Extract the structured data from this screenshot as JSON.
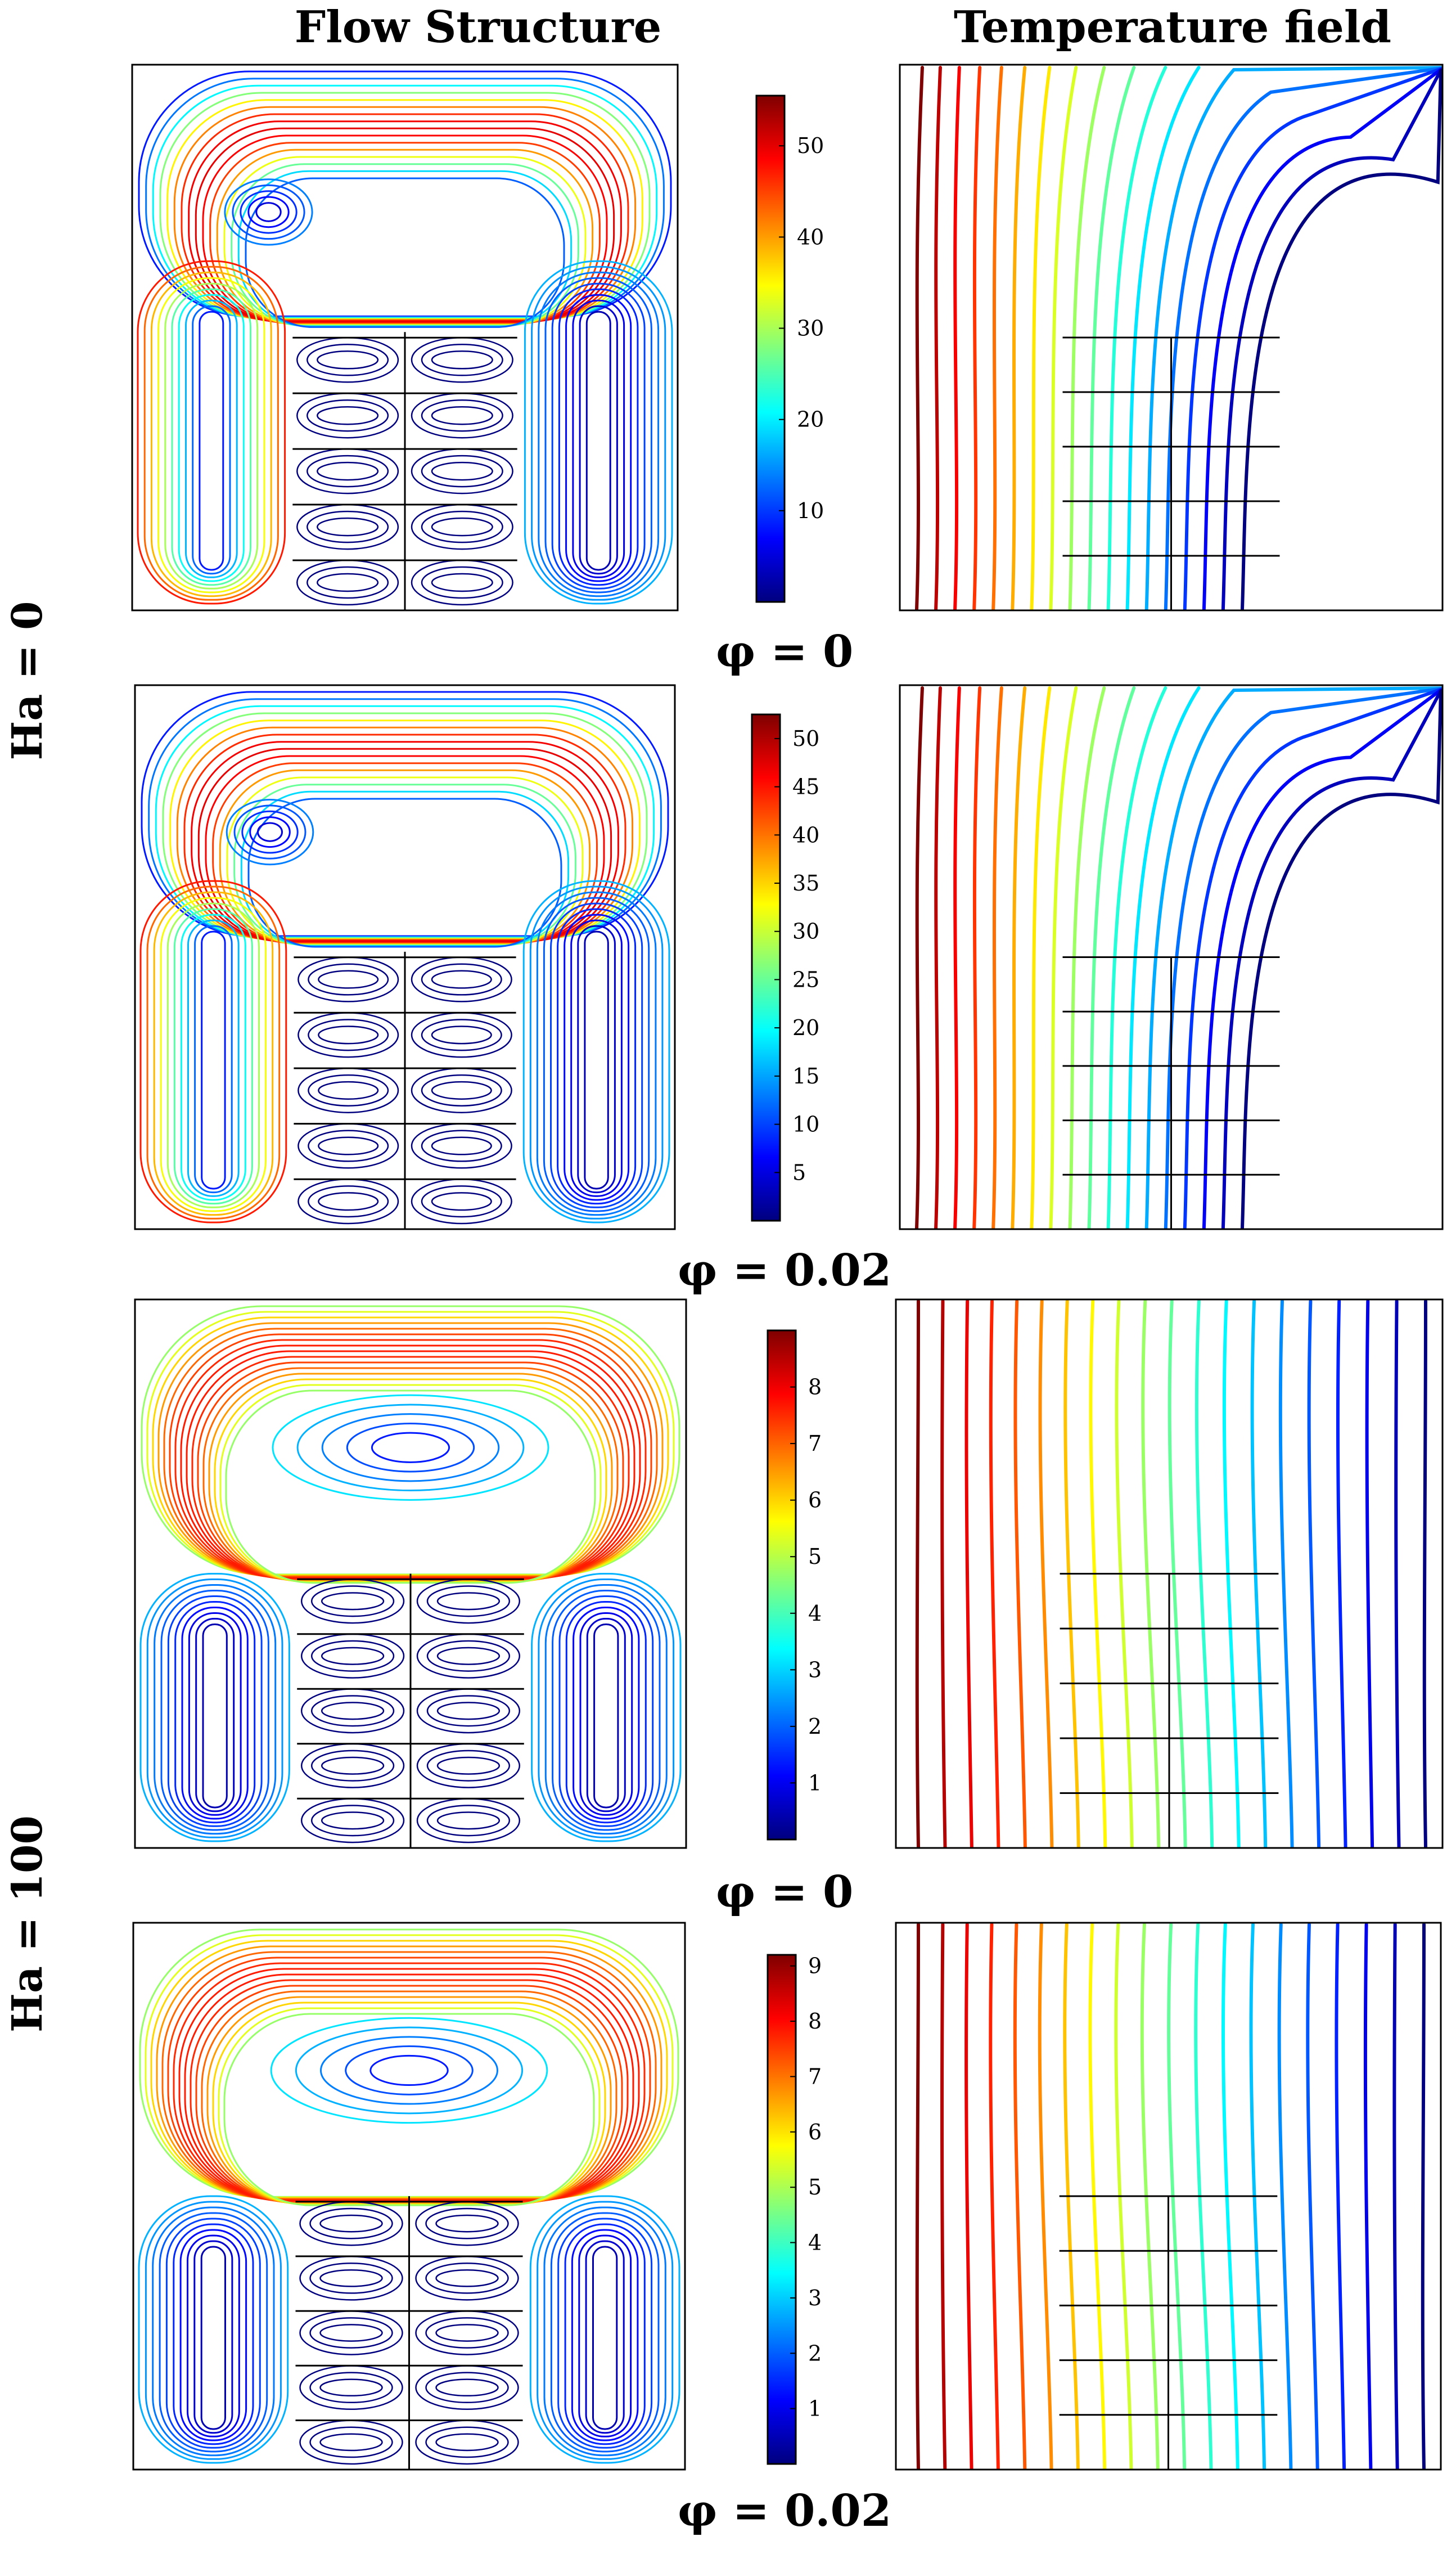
{
  "headers": {
    "flow": "Flow Structure",
    "temperature": "Temperature field"
  },
  "row_labels": {
    "ha0": "Ha = 0",
    "ha100": "Ha = 100"
  },
  "colormap": [
    "#00007f",
    "#0000ff",
    "#007fff",
    "#00ffff",
    "#7fff7f",
    "#ffff00",
    "#ff7f00",
    "#ff0000",
    "#7f0000"
  ],
  "panels": [
    {
      "caption": "φ = 0",
      "colorbar": {
        "min": 0,
        "max": 55.5,
        "ticks": [
          10,
          20,
          30,
          40,
          50
        ]
      }
    },
    {
      "caption": "φ = 0.02",
      "colorbar": {
        "min": 0,
        "max": 52.5,
        "ticks": [
          5,
          10,
          15,
          20,
          25,
          30,
          35,
          40,
          45,
          50
        ]
      }
    },
    {
      "caption": "φ = 0",
      "colorbar": {
        "min": 0,
        "max": 9.0,
        "ticks": [
          1,
          2,
          3,
          4,
          5,
          6,
          7,
          8
        ]
      }
    },
    {
      "caption": "φ = 0.02",
      "colorbar": {
        "min": 0,
        "max": 9.2,
        "ticks": [
          1,
          2,
          3,
          4,
          5,
          6,
          7,
          8,
          9
        ]
      }
    }
  ]
}
